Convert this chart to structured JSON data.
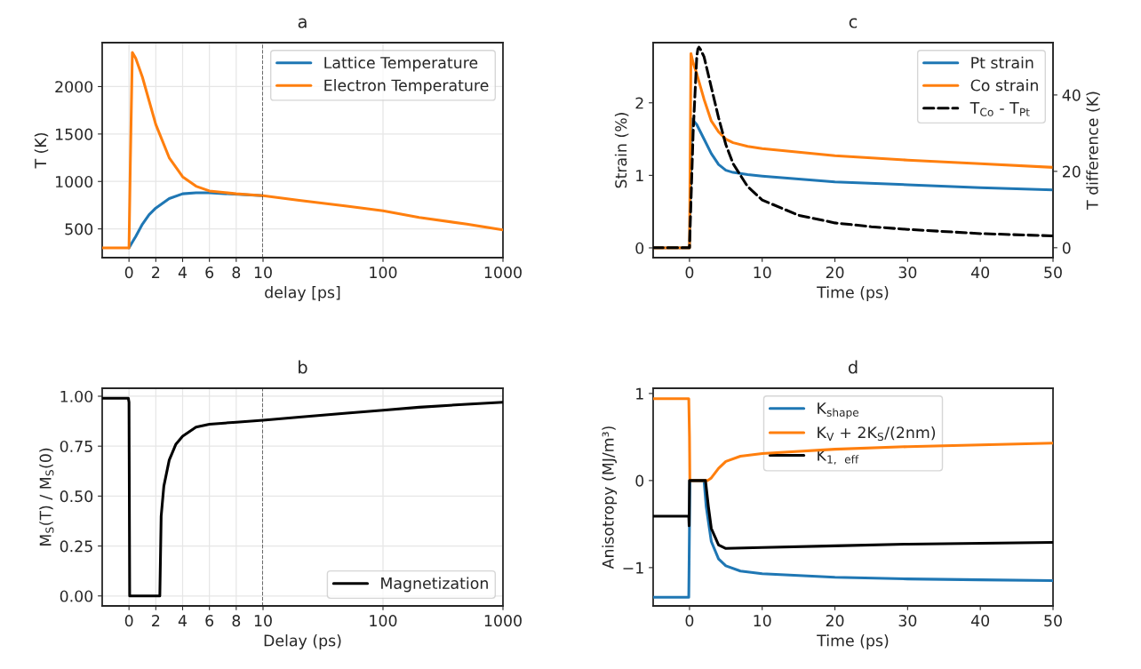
{
  "chart_data": [
    {
      "type": "line",
      "ylabel": "T (K)",
      "xlim": [
        -2,
        10
      ],
      "ylim": [
        197,
        2463
      ],
      "xticks": [
        0,
        2,
        4,
        6,
        8,
        10
      ],
      "yticks": [
        500,
        1000,
        1500,
        2000
      ],
      "grid": true,
      "ref_lines": [
        {
          "axis": "x",
          "value": 10,
          "color": "#000000",
          "line_style": "dashed"
        }
      ],
      "series": [
        {
          "color": "#1f77b4",
          "x": [
            0,
            0.25,
            0.5,
            1,
            1.5,
            2,
            3,
            4,
            5,
            6,
            8,
            10
          ],
          "values": [
            300,
            360,
            420,
            550,
            650,
            720,
            820,
            870,
            880,
            880,
            null,
            850
          ]
        },
        {
          "color": "#ff7f0e",
          "x": [
            -2,
            0,
            0.1,
            0.25,
            0.5,
            1,
            1.5,
            2,
            3,
            4,
            5,
            6,
            8,
            10
          ],
          "values": [
            300,
            300,
            1200,
            2360,
            2300,
            2100,
            1850,
            1600,
            1250,
            1050,
            950,
            900,
            870,
            850
          ]
        }
      ]
    },
    {
      "type": "line",
      "title": "a",
      "xlabel": "delay [ps]",
      "log": "x",
      "xlim": [
        10,
        1000
      ],
      "ylim": [
        197,
        2463
      ],
      "xticks": [
        100,
        1000
      ],
      "yticks": [
        500,
        1000,
        1500,
        2000
      ],
      "tick_labels": "x",
      "grid": true,
      "legend": "top right",
      "series": [
        {
          "name": "Lattice Temperature",
          "color": "#1f77b4"
        },
        {
          "name": "Electron Temperature",
          "color": "#ff7f0e",
          "x": [
            10,
            20,
            50,
            100,
            200,
            500,
            1000
          ],
          "values": [
            850,
            800,
            740,
            690,
            620,
            550,
            490
          ]
        }
      ]
    },
    {
      "type": "line",
      "title": "c",
      "xlabel": "Time (ps)",
      "ylabel": "Strain (%)",
      "y2label": "T difference (K)",
      "xlim": [
        -5,
        50
      ],
      "ylim": [
        -0.135,
        2.83
      ],
      "y2lim": [
        -2.6,
        53.7
      ],
      "xticks": [
        0,
        10,
        20,
        30,
        40,
        50
      ],
      "yticks": [
        0,
        1,
        2
      ],
      "y2ticks": [
        0,
        20,
        40
      ],
      "legend": "top right",
      "series": [
        {
          "name": "Pt strain",
          "color": "#1f77b4",
          "x": [
            -5,
            0,
            0.3,
            1,
            2,
            3,
            4,
            5,
            6,
            8,
            10,
            15,
            20,
            30,
            40,
            50
          ],
          "values": [
            0,
            0,
            1.78,
            1.7,
            1.5,
            1.3,
            1.15,
            1.07,
            1.04,
            1.01,
            0.99,
            0.95,
            0.91,
            0.87,
            0.83,
            0.8
          ]
        },
        {
          "name": "Co strain",
          "color": "#ff7f0e",
          "x": [
            -5,
            0,
            0.2,
            0.5,
            1,
            2,
            3,
            4,
            5,
            6,
            8,
            10,
            15,
            20,
            30,
            40,
            50
          ],
          "values": [
            0,
            0,
            2.68,
            2.55,
            2.4,
            2.05,
            1.75,
            1.6,
            1.5,
            1.45,
            1.4,
            1.37,
            1.32,
            1.27,
            1.21,
            1.16,
            1.11
          ]
        },
        {
          "name": "T$_{Co}$ - T$_{Pt}$",
          "color": "#000000",
          "axis": "y2",
          "line_style": "dashed",
          "x": [
            -5,
            0,
            0.5,
            1,
            1.15,
            1.3,
            1.5,
            2,
            3,
            4,
            5,
            6,
            8,
            10,
            15,
            20,
            25,
            30,
            40,
            50
          ],
          "values": [
            0,
            0,
            30,
            50,
            52,
            52.5,
            52,
            50,
            42,
            34,
            27,
            22,
            16,
            12.5,
            8.5,
            6.5,
            5.5,
            4.8,
            3.7,
            3.1
          ]
        }
      ]
    },
    {
      "type": "line",
      "ylabel": "M$_{S}$(T) / M$_{S}$(0)",
      "xlim": [
        -2,
        10
      ],
      "ylim": [
        -0.05,
        1.04
      ],
      "xticks": [
        0,
        2,
        4,
        6,
        8,
        10
      ],
      "yticks": [
        {
          "value": 0,
          "label": "0.00"
        },
        {
          "value": 0.25,
          "label": "0.25"
        },
        {
          "value": 0.5,
          "label": "0.50"
        },
        {
          "value": 0.75,
          "label": "0.75"
        },
        {
          "value": 1,
          "label": "1.00"
        }
      ],
      "grid": true,
      "ref_lines": [
        {
          "axis": "x",
          "value": 10,
          "color": "#000000",
          "line_style": "dashed"
        }
      ],
      "series": [
        {
          "color": "#000000",
          "x": [
            -2,
            -0.05,
            0,
            0.05,
            2.3,
            2.4,
            2.6,
            3,
            3.5,
            4,
            5,
            6,
            8,
            10
          ],
          "values": [
            0.99,
            0.99,
            0.97,
            0,
            0,
            0.4,
            0.55,
            0.68,
            0.76,
            0.8,
            0.845,
            0.86,
            0.87,
            0.88
          ]
        }
      ]
    },
    {
      "type": "line",
      "title": "b",
      "xlabel": "Delay (ps)",
      "log": "x",
      "xlim": [
        10,
        1000
      ],
      "ylim": [
        -0.05,
        1.04
      ],
      "xticks": [
        100,
        1000
      ],
      "yticks": [
        0,
        0.25,
        0.5,
        0.75,
        1
      ],
      "tick_labels": "x",
      "grid": true,
      "legend": "bottom right",
      "series": [
        {
          "name": "Magnetization",
          "color": "#000000",
          "x": [
            10,
            20,
            50,
            100,
            200,
            500,
            1000
          ],
          "values": [
            0.88,
            0.895,
            0.915,
            0.93,
            0.945,
            0.96,
            0.97
          ]
        }
      ]
    },
    {
      "type": "line",
      "title": "d",
      "xlabel": "Time (ps)",
      "ylabel": "Anisotropy (MJ/m³)",
      "xlim": [
        -5,
        50
      ],
      "ylim": [
        -1.44,
        1.06
      ],
      "xticks": [
        0,
        10,
        20,
        30,
        40,
        50
      ],
      "yticks": [
        {
          "value": -1,
          "label": "−1"
        },
        0,
        1
      ],
      "legend": "top",
      "series": [
        {
          "name": "K$_{shape}$",
          "color": "#1f77b4",
          "x": [
            -5,
            -0.1,
            0,
            0.05,
            2,
            2.3,
            3,
            4,
            5,
            7,
            10,
            20,
            30,
            40,
            50
          ],
          "values": [
            -1.34,
            -1.34,
            -0.5,
            0,
            0,
            -0.3,
            -0.7,
            -0.9,
            -0.98,
            -1.04,
            -1.07,
            -1.11,
            -1.13,
            -1.14,
            -1.15
          ]
        },
        {
          "name": "K$_{V}$ + 2K$_{S}$/(2nm)",
          "color": "#ff7f0e",
          "x": [
            -5,
            -0.1,
            0,
            0.05,
            2.5,
            3,
            4,
            5,
            7,
            10,
            20,
            30,
            40,
            50
          ],
          "values": [
            0.94,
            0.94,
            0.5,
            0,
            0,
            0.03,
            0.14,
            0.22,
            0.28,
            0.31,
            0.36,
            0.39,
            0.41,
            0.43
          ]
        },
        {
          "name": "K$_{1,}$ $_{eff}$",
          "color": "#000000",
          "x": [
            -5,
            -0.1,
            -0.05,
            0,
            2.2,
            2.6,
            3,
            4,
            5,
            10,
            20,
            30,
            40,
            50
          ],
          "values": [
            -0.41,
            -0.41,
            -0.52,
            0,
            0,
            -0.3,
            -0.55,
            -0.74,
            -0.78,
            -0.77,
            -0.75,
            -0.73,
            -0.72,
            -0.71
          ]
        }
      ]
    }
  ]
}
